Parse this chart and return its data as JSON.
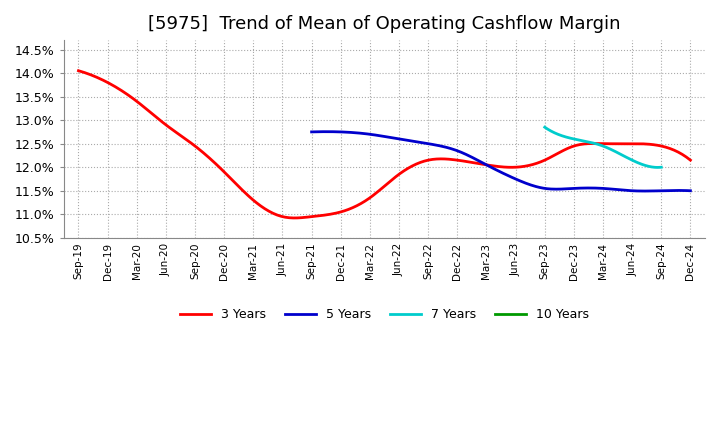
{
  "title": "[5975]  Trend of Mean of Operating Cashflow Margin",
  "title_fontsize": 13,
  "ylabel": "",
  "ylim": [
    0.105,
    0.147
  ],
  "yticks": [
    0.105,
    0.11,
    0.115,
    0.12,
    0.125,
    0.13,
    0.135,
    0.14,
    0.145
  ],
  "ytick_labels": [
    "10.5%",
    "11.0%",
    "11.5%",
    "12.0%",
    "12.5%",
    "13.0%",
    "13.5%",
    "14.0%",
    "14.5%"
  ],
  "background_color": "#ffffff",
  "plot_background": "#ffffff",
  "grid_color": "#aaaaaa",
  "series": {
    "3yr": {
      "color": "#ff0000",
      "label": "3 Years",
      "linewidth": 2.0
    },
    "5yr": {
      "color": "#0000cc",
      "label": "5 Years",
      "linewidth": 2.0
    },
    "7yr": {
      "color": "#00cccc",
      "label": "7 Years",
      "linewidth": 2.0
    },
    "10yr": {
      "color": "#009900",
      "label": "10 Years",
      "linewidth": 2.0
    }
  },
  "x_labels": [
    "Sep-19",
    "Dec-19",
    "Mar-20",
    "Jun-20",
    "Sep-20",
    "Dec-20",
    "Mar-21",
    "Jun-21",
    "Sep-21",
    "Dec-21",
    "Mar-22",
    "Jun-22",
    "Sep-22",
    "Dec-22",
    "Mar-23",
    "Jun-23",
    "Sep-23",
    "Dec-23",
    "Mar-24",
    "Jun-24",
    "Sep-24",
    "Dec-24"
  ],
  "3yr_data_x": [
    0,
    1,
    2,
    3,
    4,
    5,
    6,
    7,
    8,
    9,
    10,
    11,
    12,
    13,
    14,
    15,
    16,
    17,
    18,
    19,
    20,
    21
  ],
  "3yr_data_y": [
    0.1405,
    0.138,
    0.134,
    0.129,
    0.1245,
    0.119,
    0.113,
    0.1095,
    0.1095,
    0.1105,
    0.1135,
    0.1185,
    0.1215,
    0.1215,
    0.1205,
    0.12,
    0.1215,
    0.1245,
    0.125,
    0.125,
    0.1245,
    0.1215
  ],
  "5yr_data_x": [
    8,
    9,
    10,
    11,
    12,
    13,
    14,
    15,
    16,
    17,
    18,
    19,
    20,
    21
  ],
  "5yr_data_y": [
    0.1275,
    0.1275,
    0.127,
    0.126,
    0.125,
    0.1235,
    0.1205,
    0.1175,
    0.1155,
    0.1155,
    0.1155,
    0.115,
    0.115,
    0.115
  ],
  "7yr_data_x": [
    16,
    17,
    18,
    19,
    20
  ],
  "7yr_data_y": [
    0.1285,
    0.126,
    0.1245,
    0.1215,
    0.12
  ],
  "10yr_data_x": [],
  "10yr_data_y": []
}
